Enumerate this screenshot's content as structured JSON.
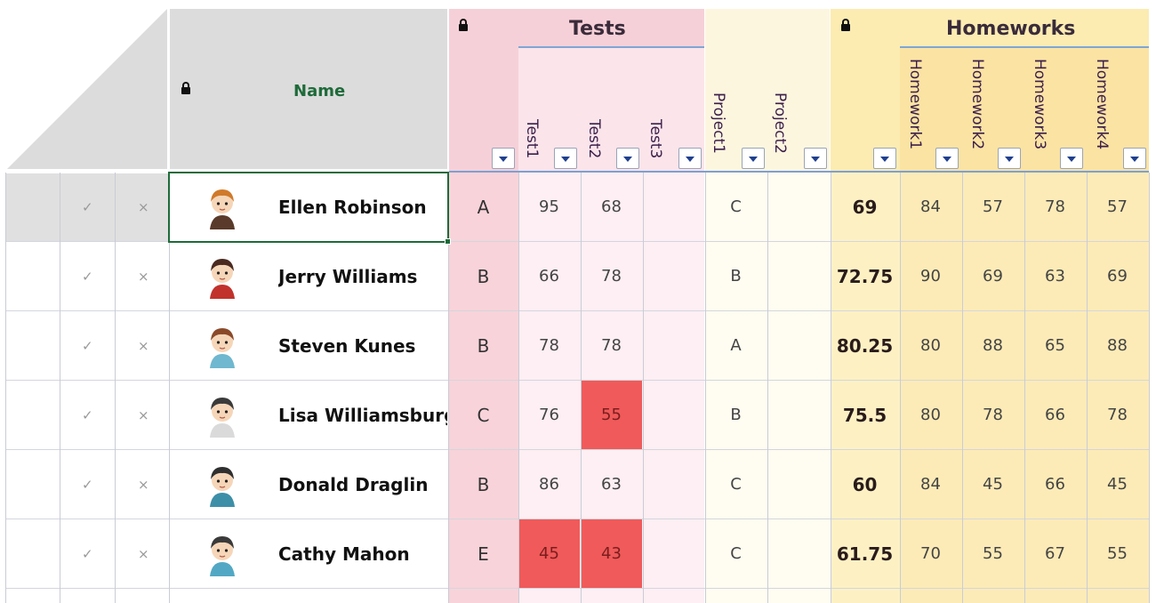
{
  "header": {
    "name_label": "Name",
    "tests_group": "Tests",
    "homeworks_group": "Homeworks",
    "tests_columns": [
      "Test1",
      "Test2",
      "Test3"
    ],
    "project_columns": [
      "Project1",
      "Project2"
    ],
    "homework_columns": [
      "Homework1",
      "Homework2",
      "Homework3",
      "Homework4"
    ]
  },
  "rows": [
    {
      "name": "Ellen Robinson",
      "grade": "A",
      "test1": "95",
      "test2": "68",
      "test3": "",
      "project1": "C",
      "project2": "",
      "avg": "69",
      "hw1": "84",
      "hw2": "57",
      "hw3": "78",
      "hw4": "57"
    },
    {
      "name": "Jerry Williams",
      "grade": "B",
      "test1": "66",
      "test2": "78",
      "test3": "",
      "project1": "B",
      "project2": "",
      "avg": "72.75",
      "hw1": "90",
      "hw2": "69",
      "hw3": "63",
      "hw4": "69"
    },
    {
      "name": "Steven Kunes",
      "grade": "B",
      "test1": "78",
      "test2": "78",
      "test3": "",
      "project1": "A",
      "project2": "",
      "avg": "80.25",
      "hw1": "80",
      "hw2": "88",
      "hw3": "65",
      "hw4": "88"
    },
    {
      "name": "Lisa Williamsburg",
      "grade": "C",
      "test1": "76",
      "test2": "55",
      "test3": "",
      "project1": "B",
      "project2": "",
      "avg": "75.5",
      "hw1": "80",
      "hw2": "78",
      "hw3": "66",
      "hw4": "78"
    },
    {
      "name": "Donald Draglin",
      "grade": "B",
      "test1": "86",
      "test2": "63",
      "test3": "",
      "project1": "C",
      "project2": "",
      "avg": "60",
      "hw1": "84",
      "hw2": "45",
      "hw3": "66",
      "hw4": "45"
    },
    {
      "name": "Cathy Mahon",
      "grade": "E",
      "test1": "45",
      "test2": "43",
      "test3": "",
      "project1": "C",
      "project2": "",
      "avg": "61.75",
      "hw1": "70",
      "hw2": "55",
      "hw3": "67",
      "hw4": "55"
    }
  ],
  "icons": {
    "check": "✓",
    "cross": "×"
  },
  "colors": {
    "name_header": "#dcdcdc",
    "tests": "#f6d0d8",
    "projects": "#fdf6df",
    "homeworks": "#fcecb2",
    "low_score": "#f05a5a",
    "name_label": "#1e6b3a"
  }
}
